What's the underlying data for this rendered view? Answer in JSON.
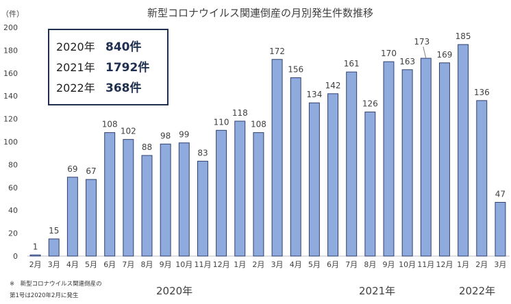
{
  "chart_data": {
    "type": "bar",
    "title": "新型コロナウイルス関連倒産の月別発生件数推移",
    "ylabel": "（件）",
    "ylim": [
      0,
      200
    ],
    "yticks": [
      0,
      20,
      40,
      60,
      80,
      100,
      120,
      140,
      160,
      180,
      200
    ],
    "categories": [
      "2月",
      "3月",
      "4月",
      "5月",
      "6月",
      "7月",
      "8月",
      "9月",
      "10月",
      "11月",
      "12月",
      "1月",
      "2月",
      "3月",
      "4月",
      "5月",
      "6月",
      "7月",
      "8月",
      "9月",
      "10月",
      "11月",
      "12月",
      "1月",
      "2月",
      "3月"
    ],
    "values": [
      1,
      15,
      69,
      67,
      108,
      102,
      88,
      98,
      99,
      83,
      110,
      118,
      108,
      172,
      156,
      134,
      142,
      161,
      126,
      170,
      163,
      173,
      169,
      185,
      136,
      47
    ],
    "bar_color": "#8faadc",
    "bar_edge_color": "#2f3f6f",
    "year_labels": [
      "2020年",
      "2021年",
      "2022年"
    ],
    "grid": false
  },
  "summary": [
    {
      "year": "2020年",
      "value": "840件"
    },
    {
      "year": "2021年",
      "value": "1792件"
    },
    {
      "year": "2022年",
      "value": "368件"
    }
  ],
  "footnote": {
    "line1": "※　新型コロナウイルス関連倒産の",
    "line2": "第1号は2020年2月に発生"
  }
}
